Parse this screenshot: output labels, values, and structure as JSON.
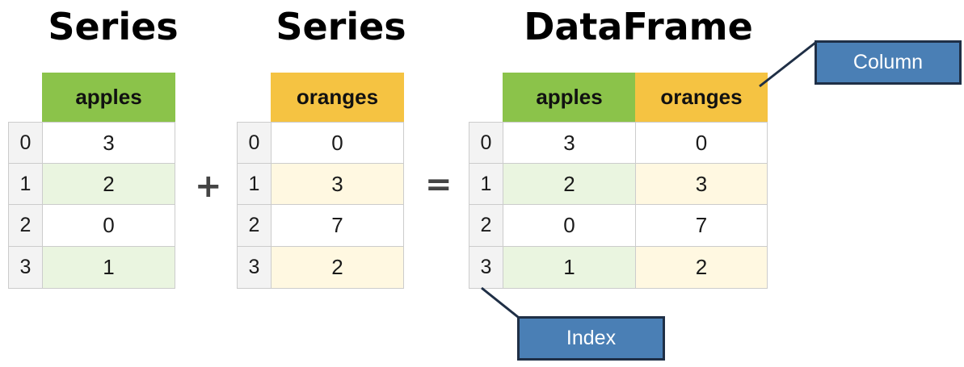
{
  "titles": {
    "series1": "Series",
    "series2": "Series",
    "dataframe": "DataFrame"
  },
  "operators": {
    "plus": "+",
    "equals": "="
  },
  "index": [
    "0",
    "1",
    "2",
    "3"
  ],
  "series1": {
    "header": "apples",
    "values": [
      "3",
      "2",
      "0",
      "1"
    ]
  },
  "series2": {
    "header": "oranges",
    "values": [
      "0",
      "3",
      "7",
      "2"
    ]
  },
  "dataframe": {
    "columns": [
      "apples",
      "oranges"
    ],
    "rows": [
      [
        "3",
        "0"
      ],
      [
        "2",
        "3"
      ],
      [
        "0",
        "7"
      ],
      [
        "1",
        "2"
      ]
    ]
  },
  "callouts": {
    "column": "Column",
    "index": "Index"
  },
  "colors": {
    "apples_header": "#8bc34a",
    "apples_alt_row": "#eaf5e0",
    "oranges_header": "#f5c342",
    "oranges_alt_row": "#fff8e1",
    "index_cell": "#f3f3f3",
    "callout_fill": "#4a7fb5",
    "callout_border": "#1f2f46"
  }
}
